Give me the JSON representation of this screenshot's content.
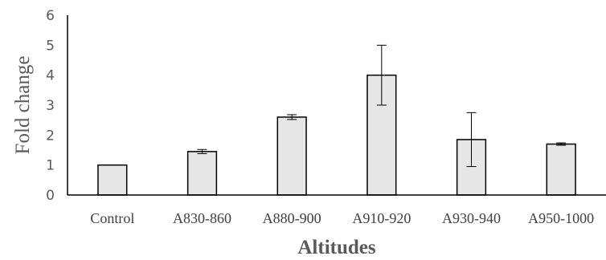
{
  "chart_data": {
    "type": "bar",
    "categories": [
      "Control",
      "A830-860",
      "A880-900",
      "A910-920",
      "A930-940",
      "A950-1000"
    ],
    "values": [
      1.0,
      1.45,
      2.6,
      4.0,
      1.85,
      1.7
    ],
    "errors": [
      0.0,
      0.07,
      0.08,
      1.0,
      0.9,
      0.04
    ],
    "xlabel": "Altitudes",
    "ylabel": "Fold change",
    "ylim": [
      0,
      6
    ],
    "yticks": [
      0,
      1,
      2,
      3,
      4,
      5,
      6
    ],
    "grid": false,
    "bar_color": "#e6e6e6",
    "edge_color": "#000000"
  }
}
